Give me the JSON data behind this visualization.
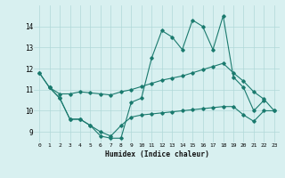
{
  "title": "",
  "xlabel": "Humidex (Indice chaleur)",
  "ylabel": "",
  "bg_color": "#d8f0f0",
  "line_color": "#1a7a6e",
  "grid_color": "#b0d8d8",
  "xlim": [
    -0.5,
    23.5
  ],
  "ylim": [
    8.5,
    15.0
  ],
  "xticks": [
    0,
    1,
    2,
    3,
    4,
    5,
    6,
    7,
    8,
    9,
    10,
    11,
    12,
    13,
    14,
    15,
    16,
    17,
    18,
    19,
    20,
    21,
    22,
    23
  ],
  "yticks": [
    9,
    10,
    11,
    12,
    13,
    14
  ],
  "line1_x": [
    0,
    1,
    2,
    3,
    4,
    5,
    6,
    7,
    8,
    9,
    10,
    11,
    12,
    13,
    14,
    15,
    16,
    17,
    18,
    19,
    20,
    21,
    22
  ],
  "line1_y": [
    11.8,
    11.1,
    10.6,
    9.6,
    9.6,
    9.3,
    8.8,
    8.7,
    8.7,
    10.4,
    10.6,
    12.5,
    13.8,
    13.5,
    12.9,
    14.3,
    14.0,
    12.9,
    14.5,
    11.6,
    11.1,
    10.0,
    10.5
  ],
  "line2_x": [
    0,
    1,
    2,
    3,
    4,
    5,
    6,
    7,
    8,
    9,
    10,
    11,
    12,
    13,
    14,
    15,
    16,
    17,
    18,
    19,
    20,
    21,
    22,
    23
  ],
  "line2_y": [
    11.8,
    11.1,
    10.8,
    10.8,
    10.9,
    10.85,
    10.8,
    10.75,
    10.9,
    11.0,
    11.15,
    11.3,
    11.45,
    11.55,
    11.65,
    11.8,
    11.95,
    12.1,
    12.25,
    11.8,
    11.4,
    10.9,
    10.55,
    10.0
  ],
  "line3_x": [
    1,
    2,
    3,
    4,
    5,
    6,
    7,
    8,
    9,
    10,
    11,
    12,
    13,
    14,
    15,
    16,
    17,
    18,
    19,
    20,
    21,
    22,
    23
  ],
  "line3_y": [
    11.1,
    10.6,
    9.6,
    9.6,
    9.3,
    9.0,
    8.8,
    9.3,
    9.7,
    9.8,
    9.85,
    9.9,
    9.95,
    10.0,
    10.05,
    10.1,
    10.15,
    10.2,
    10.2,
    9.8,
    9.5,
    10.0,
    10.0
  ]
}
